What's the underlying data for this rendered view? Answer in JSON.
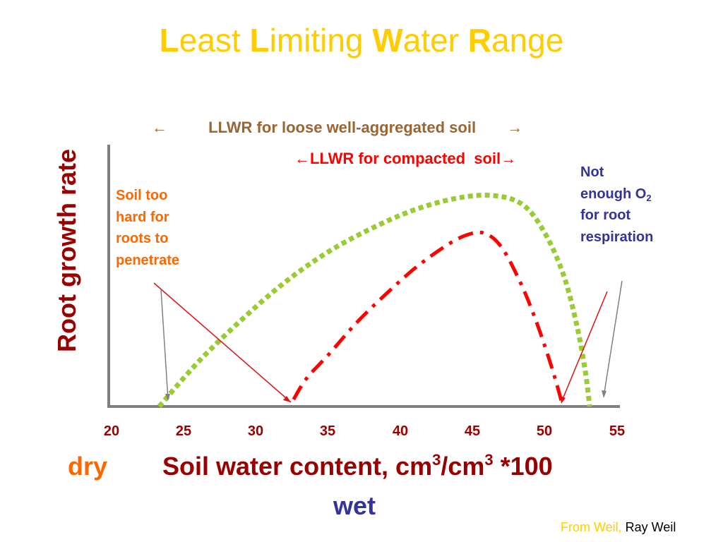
{
  "title": {
    "l1": "L",
    "w1": "east ",
    "l2": "L",
    "w2": "imiting ",
    "l3": "W",
    "w3": "ater ",
    "l4": "R",
    "w4": "ange"
  },
  "brackets": {
    "loose": {
      "left_arrow": "←",
      "text": "LLWR for loose well-aggregated soil",
      "right_arrow": "→"
    },
    "compacted": {
      "left_arrow": "←",
      "text": "LLWR for compacted  soil",
      "right_arrow": "→"
    }
  },
  "annotations": {
    "too_hard": [
      "Soil too",
      "hard for",
      "roots to",
      "penetrate"
    ],
    "no_o2": {
      "line1": "Not",
      "line2_prefix": "enough O",
      "line2_sub": "2",
      "line3": "for root",
      "line4": "respiration"
    }
  },
  "axis": {
    "xlabel_main": "Soil water content, cm",
    "xlabel_sup1": "3",
    "xlabel_mid": "/cm",
    "xlabel_sup2": "3",
    "xlabel_tail": " *100",
    "ylabel": "Root growth rate",
    "dry_label": "dry",
    "wet_label": "wet"
  },
  "credit": {
    "faint": "From Weil, ",
    "name": "Ray Weil"
  },
  "colors": {
    "title": "#ffcc00",
    "axis_text": "#990000",
    "loose_curve": "#99cc33",
    "compacted_curve": "#ff0000",
    "dry": "#ff6600",
    "wet": "#333399",
    "loose_label": "#996633"
  },
  "chart_data": {
    "type": "line",
    "x_ticks": [
      20,
      25,
      30,
      35,
      40,
      45,
      50,
      55
    ],
    "xlim": [
      20,
      55
    ],
    "ylim": [
      0,
      1
    ],
    "series": [
      {
        "key": "loose",
        "style": "dotted",
        "x": [
          23.3,
          26,
          29,
          32,
          35,
          38,
          41,
          44,
          46.5,
          48.5,
          50,
          51.3,
          52.2,
          52.8,
          53.1
        ],
        "y": [
          0,
          0.19,
          0.37,
          0.53,
          0.66,
          0.76,
          0.84,
          0.89,
          0.9,
          0.86,
          0.74,
          0.56,
          0.35,
          0.15,
          0
        ]
      },
      {
        "key": "compacted",
        "style": "dash-dot",
        "x": [
          32.6,
          33.5,
          35,
          37,
          39,
          41,
          43,
          44.5,
          45.8,
          47,
          48.3,
          49.3,
          50.2,
          50.8,
          51.2
        ],
        "y": [
          0.03,
          0.12,
          0.22,
          0.36,
          0.48,
          0.59,
          0.68,
          0.73,
          0.74,
          0.68,
          0.53,
          0.38,
          0.22,
          0.1,
          0.01
        ]
      }
    ],
    "grid": false
  }
}
